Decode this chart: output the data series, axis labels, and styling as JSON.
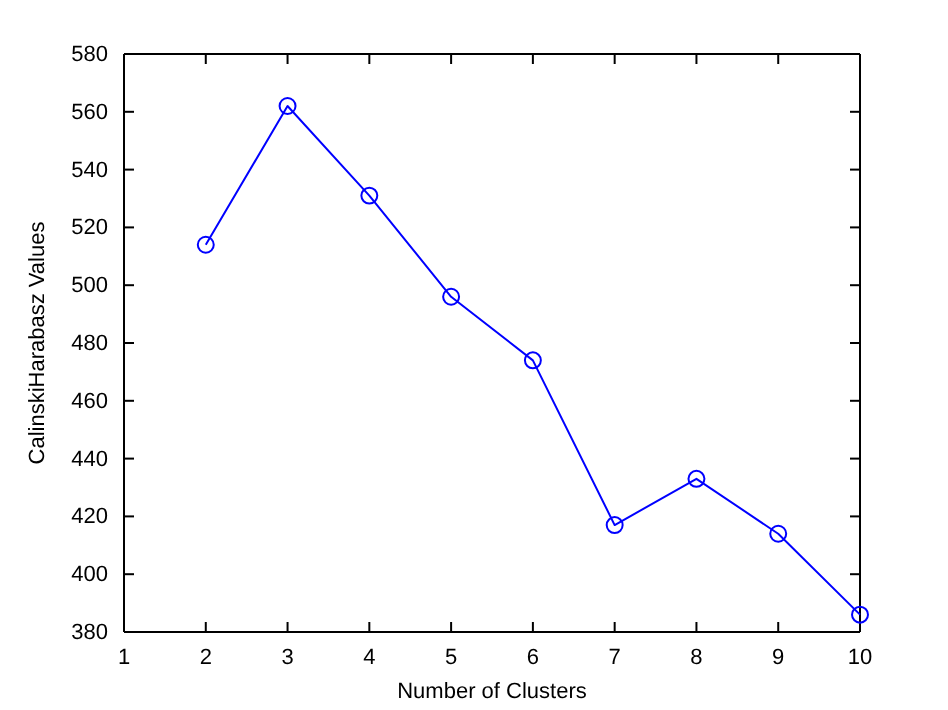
{
  "chart_data": {
    "type": "line",
    "xlabel": "Number of Clusters",
    "ylabel": "CalinskiHarabasz Values",
    "x": [
      2,
      3,
      4,
      5,
      6,
      7,
      8,
      9,
      10
    ],
    "series": [
      {
        "color": "#0000ff",
        "values": [
          514,
          562,
          531,
          496,
          474,
          417,
          433,
          414,
          386
        ]
      }
    ],
    "xlim": [
      1,
      10
    ],
    "xticks": [
      1,
      2,
      3,
      4,
      5,
      6,
      7,
      8,
      9,
      10
    ],
    "ylim": [
      380,
      580
    ],
    "yticks": [
      380,
      400,
      420,
      440,
      460,
      480,
      500,
      520,
      540,
      560,
      580
    ],
    "marker": "circle",
    "line_style": "solid"
  }
}
